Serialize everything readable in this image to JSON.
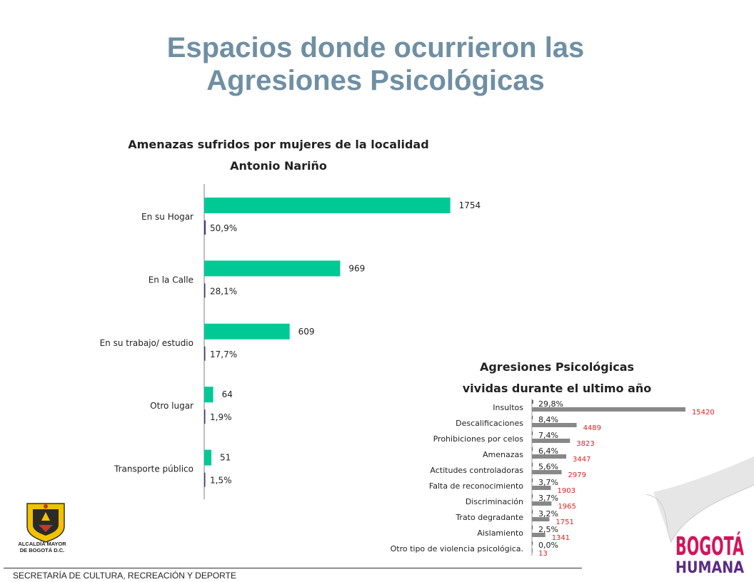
{
  "slide": {
    "title_line1": "Espacios donde ocurrieron las",
    "title_line2": "Agresiones Psicológicas",
    "footer": "SECRETARÍA DE CULTURA, RECREACIÓN Y DEPORTE",
    "alcaldia_line1": "ALCALDÍA MAYOR",
    "alcaldia_line2": "DE BOGOTÁ D.C.",
    "logo_line1": "BOGOTÁ",
    "logo_line2": "HUMANA",
    "colors": {
      "title": "#6f8fa3",
      "green_bar": "#00c996",
      "pct_bar": "#3c3a7a",
      "gray_bar": "#888888",
      "red_label": "#e02020"
    }
  },
  "chart_data": [
    {
      "type": "bar",
      "orientation": "horizontal",
      "title_line1": "Amenazas  sufridos por mujeres de la localidad",
      "title_line2": "Antonio Nariño",
      "categories": [
        "En su Hogar",
        "En la Calle",
        "En su trabajo/ estudio",
        "Otro lugar",
        "Transporte público"
      ],
      "series": [
        {
          "values": [
            1754,
            969,
            609,
            64,
            51
          ]
        },
        {
          "values": [
            0.509,
            0.281,
            0.177,
            0.019,
            0.015
          ],
          "labels": [
            "50,9%",
            "28,1%",
            "17,7%",
            "1,9%",
            "1,5%"
          ]
        }
      ],
      "value_labels": [
        "1754",
        "969",
        "609",
        "64",
        "51"
      ],
      "xlim": [
        0,
        2000
      ]
    },
    {
      "type": "bar",
      "orientation": "horizontal",
      "title_line1": "Agresiones Psicológicas",
      "title_line2": "vividas durante el ultimo año",
      "categories": [
        "Insultos",
        "Descalificaciones",
        "Prohibiciones por celos",
        "Amenazas",
        "Actitudes controladoras",
        "Falta de reconocimiento",
        "Discriminación",
        "Trato degradante",
        "Aislamiento",
        "Otro tipo de violencia psicológica."
      ],
      "series": [
        {
          "values": [
            0.298,
            0.084,
            0.074,
            0.064,
            0.056,
            0.037,
            0.037,
            0.032,
            0.025,
            0.0
          ],
          "labels": [
            "29,8%",
            "8,4%",
            "7,4%",
            "6,4%",
            "5,6%",
            "3,7%",
            "3,7%",
            "3,2%",
            "2,5%",
            "0,0%"
          ]
        },
        {
          "values": [
            15420,
            4489,
            3823,
            3447,
            2979,
            1903,
            1965,
            1751,
            1341,
            13
          ]
        }
      ],
      "value_labels": [
        "15420",
        "4489",
        "3823",
        "3447",
        "2979",
        "1903",
        "1965",
        "1751",
        "1341",
        "13"
      ],
      "xlim": [
        0,
        16500
      ]
    }
  ]
}
